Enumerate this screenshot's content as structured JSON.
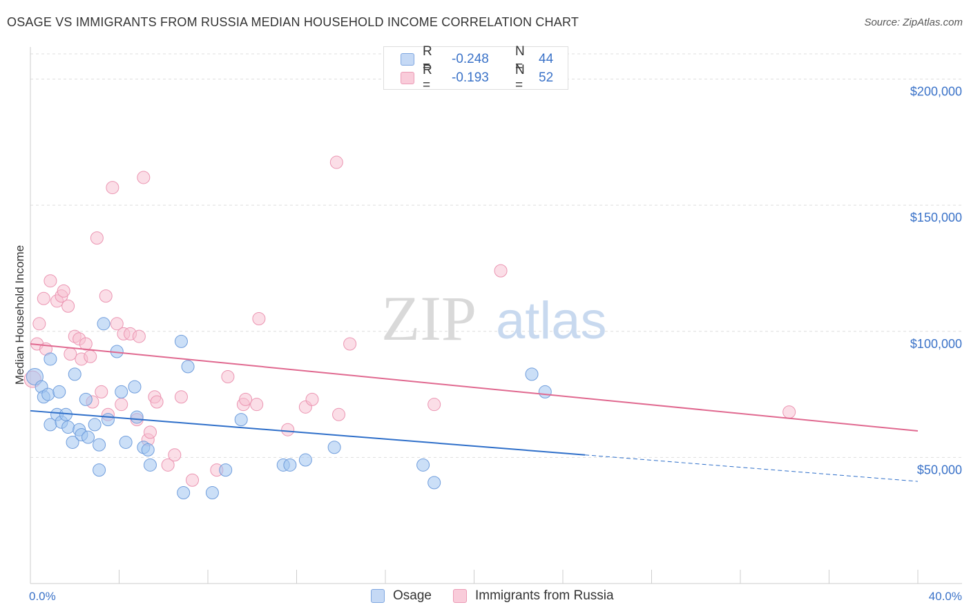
{
  "title": "OSAGE VS IMMIGRANTS FROM RUSSIA MEDIAN HOUSEHOLD INCOME CORRELATION CHART",
  "source": "Source: ZipAtlas.com",
  "watermark": {
    "zip": "ZIP",
    "atlas": "atlas"
  },
  "legend": {
    "rows": [
      {
        "r_label": "R =",
        "r_value": "-0.248",
        "n_label": "N =",
        "n_value": "44"
      },
      {
        "r_label": "R =",
        "r_value": "-0.193",
        "n_label": "N =",
        "n_value": "52"
      }
    ]
  },
  "chart_data": {
    "type": "scatter",
    "ylabel": "Median Household Income",
    "x_tick_labels": [
      "0.0%",
      "40.0%"
    ],
    "y_tick_labels": [
      "$50,000",
      "$100,000",
      "$150,000",
      "$200,000"
    ],
    "xlim": [
      0,
      40
    ],
    "ylim": [
      0,
      210000
    ],
    "y_ticks": [
      50000,
      100000,
      150000,
      200000
    ],
    "grid": true,
    "colors": {
      "osage": "#5b8fd6",
      "russia": "#e87fa3",
      "osage_line": "#2d6ec9",
      "russia_line": "#e0688f"
    },
    "series": [
      {
        "name": "Osage",
        "points": [
          [
            0.2,
            82000
          ],
          [
            0.5,
            78000
          ],
          [
            0.6,
            74000
          ],
          [
            0.8,
            75000
          ],
          [
            0.9,
            89000
          ],
          [
            0.9,
            63000
          ],
          [
            1.2,
            67000
          ],
          [
            1.3,
            76000
          ],
          [
            1.4,
            64000
          ],
          [
            1.6,
            67000
          ],
          [
            1.7,
            62000
          ],
          [
            1.9,
            56000
          ],
          [
            2.0,
            83000
          ],
          [
            2.2,
            61000
          ],
          [
            2.3,
            59000
          ],
          [
            2.5,
            73000
          ],
          [
            2.6,
            58000
          ],
          [
            2.9,
            63000
          ],
          [
            3.1,
            55000
          ],
          [
            3.1,
            45000
          ],
          [
            3.3,
            103000
          ],
          [
            3.5,
            65000
          ],
          [
            3.9,
            92000
          ],
          [
            4.1,
            76000
          ],
          [
            4.3,
            56000
          ],
          [
            4.7,
            78000
          ],
          [
            4.8,
            66000
          ],
          [
            5.1,
            54000
          ],
          [
            5.3,
            53000
          ],
          [
            5.4,
            47000
          ],
          [
            6.8,
            96000
          ],
          [
            6.9,
            36000
          ],
          [
            7.1,
            86000
          ],
          [
            8.2,
            36000
          ],
          [
            8.8,
            45000
          ],
          [
            9.5,
            65000
          ],
          [
            11.4,
            47000
          ],
          [
            11.7,
            47000
          ],
          [
            12.4,
            49000
          ],
          [
            13.7,
            54000
          ],
          [
            17.7,
            47000
          ],
          [
            18.2,
            40000
          ],
          [
            22.6,
            83000
          ],
          [
            23.2,
            76000
          ]
        ]
      },
      {
        "name": "Immigrants from Russia",
        "points": [
          [
            0.1,
            81000
          ],
          [
            0.3,
            95000
          ],
          [
            0.4,
            103000
          ],
          [
            0.6,
            113000
          ],
          [
            0.7,
            93000
          ],
          [
            0.9,
            120000
          ],
          [
            1.2,
            112000
          ],
          [
            1.4,
            114000
          ],
          [
            1.5,
            116000
          ],
          [
            1.7,
            110000
          ],
          [
            1.8,
            91000
          ],
          [
            2.0,
            98000
          ],
          [
            2.2,
            97000
          ],
          [
            2.3,
            89000
          ],
          [
            2.5,
            95000
          ],
          [
            2.7,
            90000
          ],
          [
            2.8,
            72000
          ],
          [
            3.0,
            137000
          ],
          [
            3.2,
            76000
          ],
          [
            3.4,
            114000
          ],
          [
            3.5,
            67000
          ],
          [
            3.7,
            157000
          ],
          [
            3.9,
            103000
          ],
          [
            4.1,
            71000
          ],
          [
            4.2,
            99000
          ],
          [
            4.5,
            99000
          ],
          [
            4.8,
            65000
          ],
          [
            4.9,
            98000
          ],
          [
            5.1,
            161000
          ],
          [
            5.3,
            57000
          ],
          [
            5.4,
            60000
          ],
          [
            5.6,
            74000
          ],
          [
            5.7,
            72000
          ],
          [
            6.2,
            47000
          ],
          [
            6.5,
            51000
          ],
          [
            6.8,
            74000
          ],
          [
            7.3,
            41000
          ],
          [
            8.4,
            45000
          ],
          [
            8.9,
            82000
          ],
          [
            9.6,
            71000
          ],
          [
            9.7,
            73000
          ],
          [
            10.2,
            71000
          ],
          [
            10.3,
            105000
          ],
          [
            11.6,
            61000
          ],
          [
            12.4,
            70000
          ],
          [
            12.7,
            73000
          ],
          [
            13.8,
            167000
          ],
          [
            13.9,
            67000
          ],
          [
            14.4,
            95000
          ],
          [
            18.2,
            71000
          ],
          [
            21.2,
            124000
          ],
          [
            34.2,
            68000
          ]
        ]
      }
    ],
    "trend_lines": [
      {
        "series": "Osage",
        "x": [
          0,
          25
        ],
        "y": [
          68500,
          51000
        ],
        "dashed_extension": [
          25,
          40,
          51000,
          40500
        ]
      },
      {
        "series": "Immigrants from Russia",
        "x": [
          0,
          40
        ],
        "y": [
          95000,
          60500
        ]
      }
    ]
  }
}
